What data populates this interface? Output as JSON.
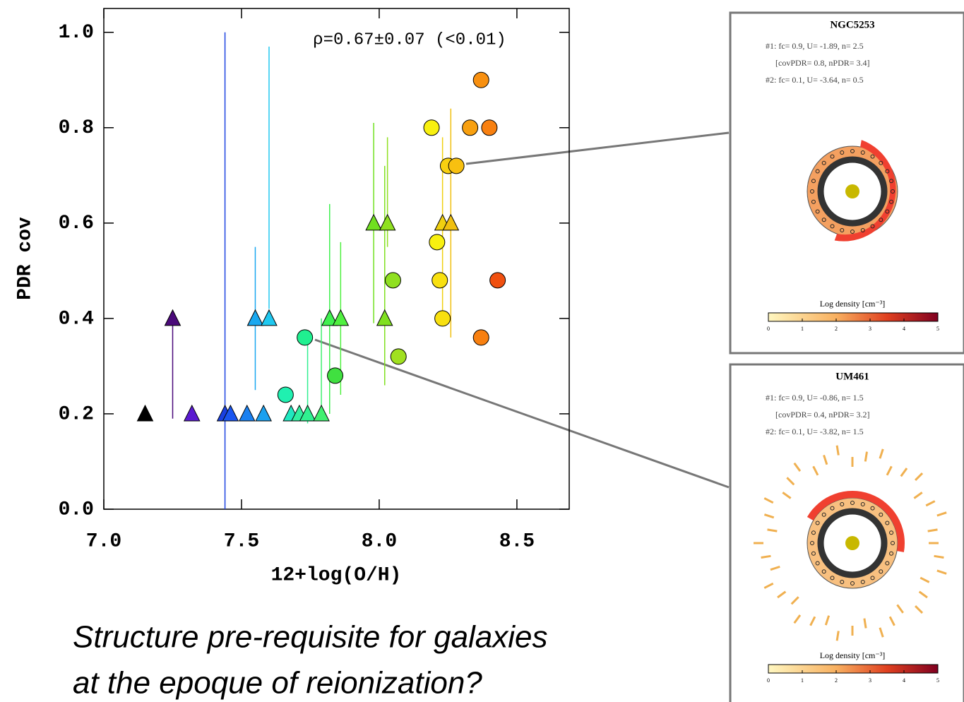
{
  "chart_data": {
    "type": "scatter",
    "annotation": "ρ=0.67±0.07 (<0.01)",
    "xlabel": "12+log(O/H)",
    "ylabel": "PDR cov",
    "xlim": [
      7.0,
      8.69
    ],
    "ylim": [
      0,
      1.05
    ],
    "xticks": [
      {
        "value": 7.0,
        "label": "7.0"
      },
      7.5,
      {
        "value": 8.0,
        "label": "8.0"
      },
      8.5
    ],
    "yticks": [
      {
        "value": 0,
        "label": "0.0"
      },
      0.2,
      0.4,
      0.6,
      0.8,
      {
        "value": 1.0,
        "label": "1.0"
      }
    ],
    "series": [
      {
        "marker": "triangle",
        "x": [
          7.15,
          7.25,
          7.32,
          7.44,
          7.46,
          7.52,
          7.58,
          7.55,
          7.6,
          7.68,
          7.71,
          7.74,
          7.79,
          7.82,
          7.86,
          7.98,
          8.02,
          8.03,
          8.23,
          8.26
        ],
        "values": [
          0.2,
          0.4,
          0.2,
          0.2,
          0.2,
          0.2,
          0.2,
          0.4,
          0.4,
          0.2,
          0.2,
          0.2,
          0.2,
          0.4,
          0.4,
          0.6,
          0.4,
          0.6,
          0.6,
          0.6
        ],
        "ylow": [
          null,
          0.19,
          null,
          -0.1,
          null,
          null,
          null,
          0.25,
          0.42,
          null,
          null,
          0.18,
          0.2,
          0.2,
          0.24,
          0.39,
          0.26,
          0.55,
          0.4,
          0.36
        ],
        "yhigh": [
          null,
          0.4,
          null,
          1.0,
          0.45,
          null,
          null,
          0.55,
          0.97,
          null,
          null,
          0.36,
          0.4,
          0.64,
          0.56,
          0.81,
          0.72,
          0.78,
          0.78,
          0.84
        ],
        "colors": [
          "#000000",
          "#4b0a7a",
          "#5a1ad0",
          "#1a40e0",
          "#1a55f0",
          "#1a80f0",
          "#1aa0f0",
          "#1aa8f0",
          "#20c8f0",
          "#20e8c0",
          "#30f0a0",
          "#30f090",
          "#40f070",
          "#40f050",
          "#50f040",
          "#70e020",
          "#80e020",
          "#90e020",
          "#f0d010",
          "#f0c010"
        ]
      },
      {
        "marker": "circle",
        "x": [
          7.66,
          7.73,
          7.84,
          8.05,
          8.07,
          8.19,
          8.21,
          8.22,
          8.23,
          8.25,
          8.28,
          8.33,
          8.37,
          8.37,
          8.4,
          8.43
        ],
        "values": [
          0.24,
          0.36,
          0.28,
          0.48,
          0.32,
          0.8,
          0.56,
          0.48,
          0.4,
          0.72,
          0.72,
          0.8,
          0.9,
          0.36,
          0.8,
          0.48
        ],
        "colors": [
          "#20f0b0",
          "#20f090",
          "#40e040",
          "#90e020",
          "#a0e020",
          "#f8f010",
          "#f8f010",
          "#f8e010",
          "#f8e010",
          "#f8d010",
          "#f8c010",
          "#f8a010",
          "#f89010",
          "#f88010",
          "#f88010",
          "#f05010"
        ]
      }
    ]
  },
  "caption": [
    "Structure pre-requisite for galaxies",
    "at the epoque of reionization?"
  ],
  "insets": [
    {
      "title": "NGC5253",
      "lines": [
        "#1: fc= 0.9, U= -1.89, n= 2.5",
        "[covPDR= 0.8, nPDR= 3.4]",
        "#2: fc= 0.1, U= -3.64, n= 0.5"
      ],
      "colorbar_label": "Log density [cm⁻³]",
      "colorbar_ticks": [
        0,
        1,
        2,
        3,
        4,
        5
      ]
    },
    {
      "title": "UM461",
      "lines": [
        "#1: fc= 0.9, U= -0.86, n= 1.5",
        "[covPDR= 0.4, nPDR= 3.2]",
        "#2: fc= 0.1, U= -3.82, n= 1.5"
      ],
      "colorbar_label": "Log density [cm⁻³]",
      "colorbar_ticks": [
        0,
        1,
        2,
        3,
        4,
        5
      ]
    }
  ]
}
